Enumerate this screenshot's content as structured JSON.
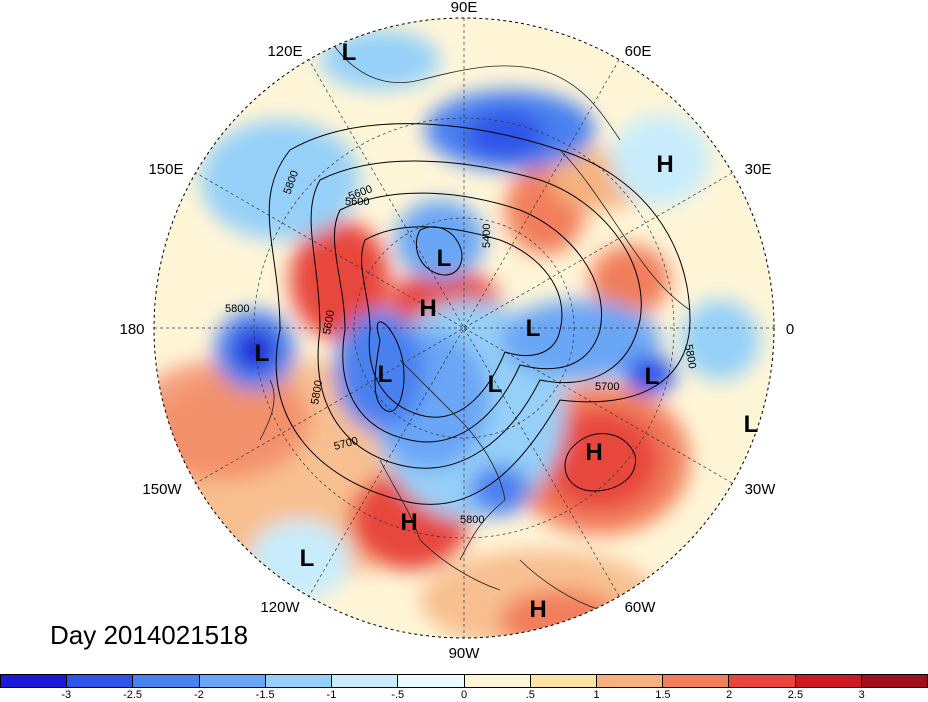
{
  "date_label": "Day 2014021518",
  "longitude_labels": {
    "deg90e": "90E",
    "deg60e": "60E",
    "deg30e": "30E",
    "deg0": "0",
    "deg30w": "30W",
    "deg60w": "60W",
    "deg90w": "90W",
    "deg120w": "120W",
    "deg150w": "150W",
    "deg180": "180",
    "deg150e": "150E",
    "deg120e": "120E"
  },
  "pressure_centers": [
    {
      "type": "L"
    },
    {
      "type": "H"
    },
    {
      "type": "L"
    },
    {
      "type": "H"
    },
    {
      "type": "L"
    },
    {
      "type": "L"
    },
    {
      "type": "L"
    },
    {
      "type": "L"
    },
    {
      "type": "L"
    },
    {
      "type": "H"
    },
    {
      "type": "H"
    },
    {
      "type": "L"
    },
    {
      "type": "H"
    },
    {
      "type": "L"
    }
  ],
  "contour_labels": [
    "5800",
    "5600",
    "5400",
    "5800",
    "5600",
    "5600",
    "5800",
    "5700",
    "5700",
    "5800",
    "5800"
  ],
  "colorbar": {
    "colors": [
      "#1a1ad6",
      "#2f55e8",
      "#4a80f0",
      "#6aa6f6",
      "#96d0f8",
      "#c8ecfb",
      "#eafaff",
      "#fff6d8",
      "#fbe3a8",
      "#f6b27e",
      "#f17e5c",
      "#e8463d",
      "#cc1a25",
      "#a0101c"
    ],
    "labels": [
      "-3",
      "-2.5",
      "-2",
      "-1.5",
      "-1",
      "-.5",
      "0",
      ".5",
      "1",
      "1.5",
      "2",
      "2.5",
      "3"
    ]
  }
}
